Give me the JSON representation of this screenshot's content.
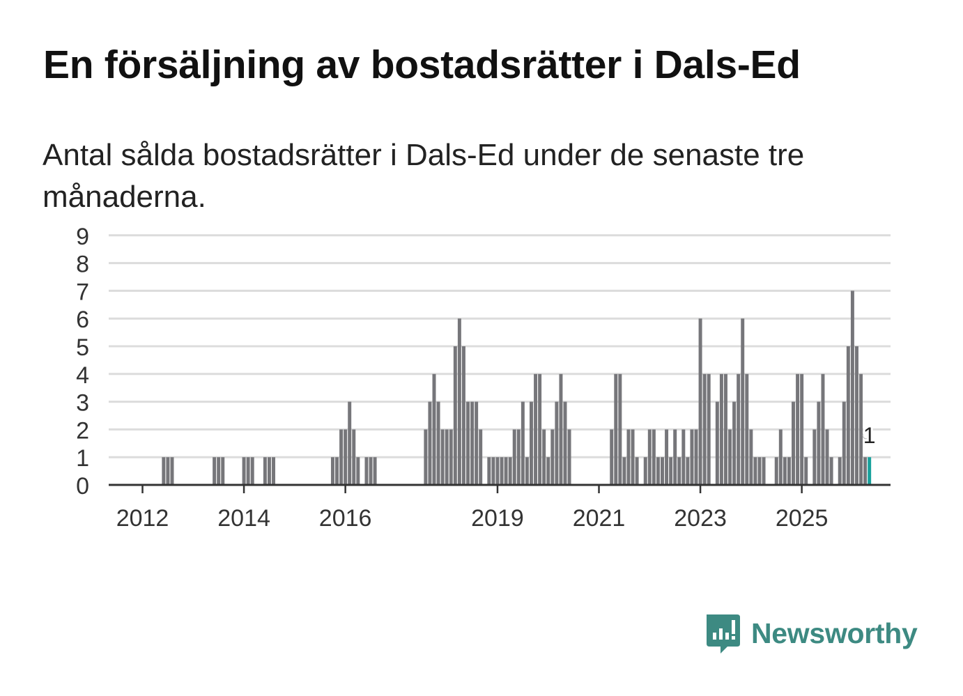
{
  "header": {
    "title": "En försäljning av bostadsrätter i Dals-Ed",
    "subtitle": "Antal sålda bostadsrätter i Dals-Ed under de senaste tre månaderna."
  },
  "brand": {
    "name": "Newsworthy",
    "icon": "newsworthy-logo-icon",
    "color": "#3d8a82"
  },
  "chart_data": {
    "type": "bar",
    "title": "En försäljning av bostadsrätter i Dals-Ed",
    "subtitle": "Antal sålda bostadsrätter i Dals-Ed under de senaste tre månaderna.",
    "xlabel": "",
    "ylabel": "",
    "ylim": [
      0,
      9
    ],
    "yticks": [
      "0",
      "1",
      "2",
      "3",
      "4",
      "5",
      "6",
      "7",
      "8",
      "9"
    ],
    "grid": true,
    "legend": "none",
    "x_start": "2011-05",
    "x_end": "2026-10",
    "xticks": [
      {
        "label": "2012",
        "month": "2012-01"
      },
      {
        "label": "2014",
        "month": "2014-01"
      },
      {
        "label": "2016",
        "month": "2016-01"
      },
      {
        "label": "2019",
        "month": "2019-01"
      },
      {
        "label": "2021",
        "month": "2021-01"
      },
      {
        "label": "2023",
        "month": "2023-01"
      },
      {
        "label": "2025",
        "month": "2025-01"
      }
    ],
    "bar_color": "#76767a",
    "highlight_color": "#18a19c",
    "highlight_label": "1",
    "series": [
      {
        "name": "Antal sålda bostadsrätter",
        "start": "2011-05",
        "values": [
          0,
          0,
          0,
          0,
          0,
          0,
          0,
          0,
          0,
          0,
          0,
          0,
          0,
          1,
          1,
          1,
          0,
          0,
          0,
          0,
          0,
          0,
          0,
          0,
          0,
          1,
          1,
          1,
          0,
          0,
          0,
          0,
          1,
          1,
          1,
          0,
          0,
          1,
          1,
          1,
          0,
          0,
          0,
          0,
          0,
          0,
          0,
          0,
          0,
          0,
          0,
          0,
          0,
          1,
          1,
          2,
          2,
          3,
          2,
          1,
          0,
          1,
          1,
          1,
          0,
          0,
          0,
          0,
          0,
          0,
          0,
          0,
          0,
          0,
          0,
          2,
          3,
          4,
          3,
          2,
          2,
          2,
          5,
          6,
          5,
          3,
          3,
          3,
          2,
          0,
          1,
          1,
          1,
          1,
          1,
          1,
          2,
          2,
          3,
          1,
          3,
          4,
          4,
          2,
          1,
          2,
          3,
          4,
          3,
          2,
          0,
          0,
          0,
          0,
          0,
          0,
          0,
          0,
          0,
          2,
          4,
          4,
          1,
          2,
          2,
          1,
          0,
          1,
          2,
          2,
          1,
          1,
          2,
          1,
          2,
          1,
          2,
          1,
          2,
          2,
          6,
          4,
          4,
          0,
          3,
          4,
          4,
          2,
          3,
          4,
          6,
          4,
          2,
          1,
          1,
          1,
          0,
          0,
          1,
          2,
          1,
          1,
          3,
          4,
          4,
          1,
          0,
          2,
          3,
          4,
          2,
          1,
          0,
          1,
          3,
          5,
          7,
          5,
          4,
          1,
          1
        ]
      }
    ]
  }
}
